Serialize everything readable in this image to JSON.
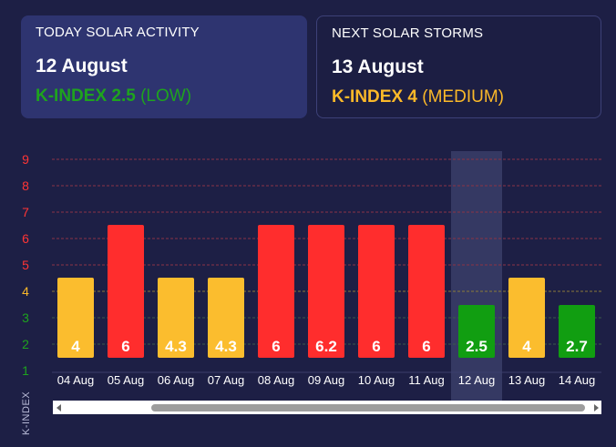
{
  "today": {
    "label": "TODAY SOLAR ACTIVITY",
    "date": "12 August",
    "kindex_prefix": "K-INDEX",
    "kindex_value": "2.5",
    "level": "(LOW)"
  },
  "next": {
    "label": "NEXT SOLAR STORMS",
    "date": "13 August",
    "kindex_prefix": "K-INDEX",
    "kindex_value": "4",
    "level": "(MEDIUM)"
  },
  "colors": {
    "background": "#1d1f45",
    "low": "#119e11",
    "medium": "#fbbd2e",
    "high": "#ff2d2d",
    "highlight_column": "#353963"
  },
  "chart_data": {
    "type": "bar",
    "ylabel": "K-INDEX",
    "ylim": [
      1,
      9
    ],
    "yticks": [
      {
        "label": "9",
        "value": 9,
        "level": "high"
      },
      {
        "label": "8",
        "value": 8,
        "level": "high"
      },
      {
        "label": "7",
        "value": 7,
        "level": "high"
      },
      {
        "label": "6",
        "value": 6,
        "level": "high"
      },
      {
        "label": "5",
        "value": 5,
        "level": "high"
      },
      {
        "label": "4",
        "value": 4,
        "level": "medium"
      },
      {
        "label": "3",
        "value": 3,
        "level": "low"
      },
      {
        "label": "2",
        "value": 2,
        "level": "low"
      },
      {
        "label": "1",
        "value": 1,
        "level": "low"
      }
    ],
    "categories": [
      "04 Aug",
      "05 Aug",
      "06 Aug",
      "07 Aug",
      "08 Aug",
      "09 Aug",
      "10 Aug",
      "11 Aug",
      "12 Aug",
      "13 Aug",
      "14 Aug"
    ],
    "values": [
      4,
      6,
      4.3,
      4.3,
      6,
      6.2,
      6,
      6,
      2.5,
      4,
      2.7
    ],
    "labels": [
      "4",
      "6",
      "4.3",
      "4.3",
      "6",
      "6.2",
      "6",
      "6",
      "2.5",
      "4",
      "2.7"
    ],
    "levels": [
      "medium",
      "high",
      "medium",
      "medium",
      "high",
      "high",
      "high",
      "high",
      "low",
      "medium",
      "low"
    ],
    "bar_heights": [
      4,
      6,
      4,
      4,
      6,
      6,
      6,
      6,
      3,
      4,
      3
    ],
    "highlighted_category": "12 Aug",
    "grid": true
  }
}
